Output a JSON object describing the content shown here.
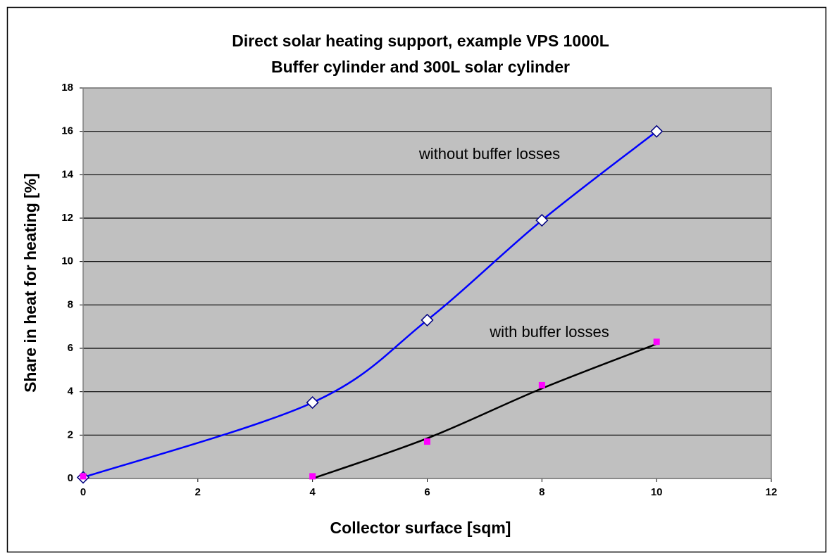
{
  "chart_data": {
    "type": "line",
    "title": [
      "Direct solar heating support, example VPS 1000L",
      "Buffer cylinder and 300L solar cylinder"
    ],
    "x_label": "Collector surface [sqm]",
    "y_label": "Share in heat for heating [%]",
    "x": [
      0,
      4,
      6,
      8,
      10
    ],
    "series": [
      {
        "name": "without buffer losses",
        "color": "#0000ff",
        "marker": "diamond",
        "line": true,
        "values": [
          0.05,
          3.5,
          7.3,
          11.9,
          16
        ]
      },
      {
        "name": "with buffer losses",
        "color": "#ff00ff",
        "marker": "square",
        "line": false,
        "values": [
          0.1,
          0.1,
          1.7,
          4.3,
          6.3
        ],
        "trendline": {
          "color": "#000000",
          "x": [
            4,
            6,
            8,
            10
          ],
          "values": [
            0,
            1.85,
            4.15,
            6.2
          ]
        }
      }
    ],
    "xlim": [
      0,
      12
    ],
    "xticks": [
      0,
      2,
      4,
      6,
      8,
      10,
      12
    ],
    "ylim": [
      0,
      18
    ],
    "yticks": [
      0,
      2,
      4,
      6,
      8,
      10,
      12,
      14,
      16,
      18
    ],
    "grid": true,
    "background": "#c0c0c0"
  }
}
